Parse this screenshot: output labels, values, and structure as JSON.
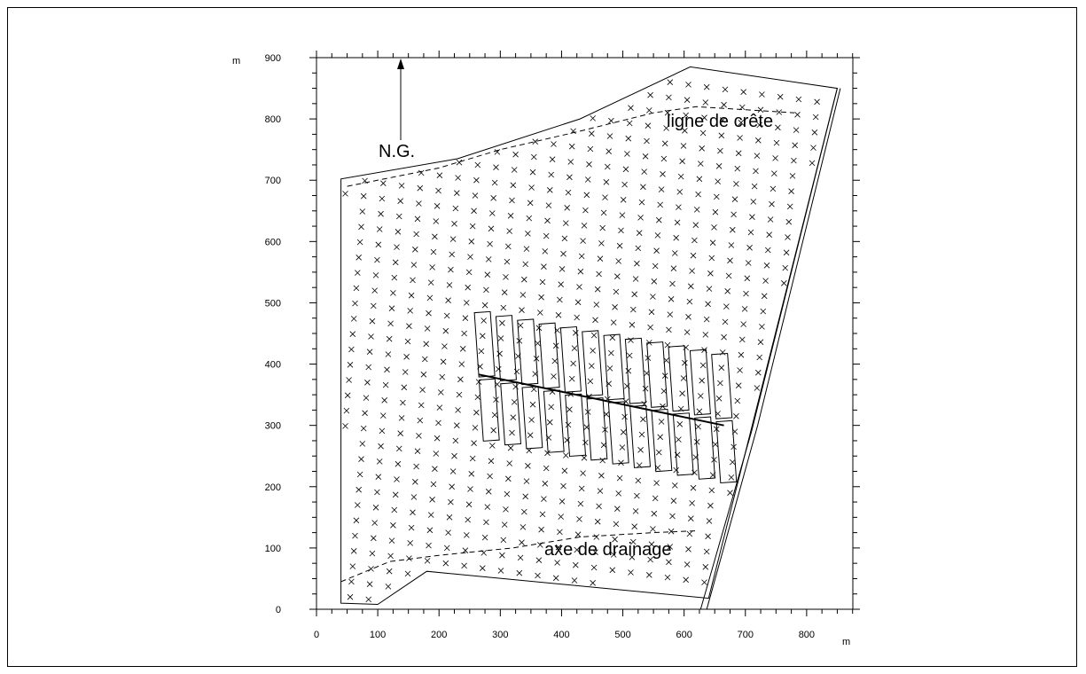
{
  "axes": {
    "x_unit": "m",
    "y_unit": "m",
    "x_range": [
      0,
      900
    ],
    "y_range": [
      0,
      900
    ],
    "x_ticks": [
      0,
      100,
      200,
      300,
      400,
      500,
      600,
      700,
      800
    ],
    "y_ticks": [
      0,
      100,
      200,
      300,
      400,
      500,
      600,
      700,
      800,
      900
    ],
    "x_tick_labels": [
      "0",
      "100",
      "200",
      "300",
      "400",
      "500",
      "600",
      "700",
      "800"
    ],
    "y_tick_labels": [
      "0",
      "100",
      "200",
      "300",
      "400",
      "500",
      "600",
      "700",
      "800",
      "900"
    ]
  },
  "annotations": {
    "north": "N.G.",
    "ridge_line": "ligne de crête",
    "drainage_axis": "axe de drainage"
  },
  "colors": {
    "ink": "#000000",
    "background": "#ffffff"
  },
  "plot_data": {
    "site_boundary": [
      [
        40,
        10
      ],
      [
        100,
        8
      ],
      [
        180,
        62
      ],
      [
        640,
        18
      ],
      [
        850,
        850
      ],
      [
        610,
        885
      ],
      [
        430,
        800
      ],
      [
        230,
        735
      ],
      [
        40,
        702
      ]
    ],
    "road_edges": [
      [
        [
          627,
          0
        ],
        [
          710,
          290
        ],
        [
          850,
          850
        ]
      ],
      [
        [
          637,
          0
        ],
        [
          720,
          300
        ],
        [
          855,
          850
        ]
      ]
    ],
    "ridge_line": [
      [
        50,
        690
      ],
      [
        200,
        720
      ],
      [
        300,
        750
      ],
      [
        430,
        780
      ],
      [
        550,
        810
      ],
      [
        620,
        820
      ],
      [
        780,
        810
      ]
    ],
    "drainage_line": [
      [
        40,
        45
      ],
      [
        120,
        78
      ],
      [
        200,
        88
      ],
      [
        320,
        100
      ],
      [
        430,
        118
      ],
      [
        550,
        125
      ],
      [
        620,
        128
      ]
    ],
    "upper_plots_center_line": [
      [
        265,
        385
      ],
      [
        660,
        303
      ]
    ],
    "north_arrow": {
      "x": 140,
      "y_from": 792,
      "y_to": 907
    }
  }
}
